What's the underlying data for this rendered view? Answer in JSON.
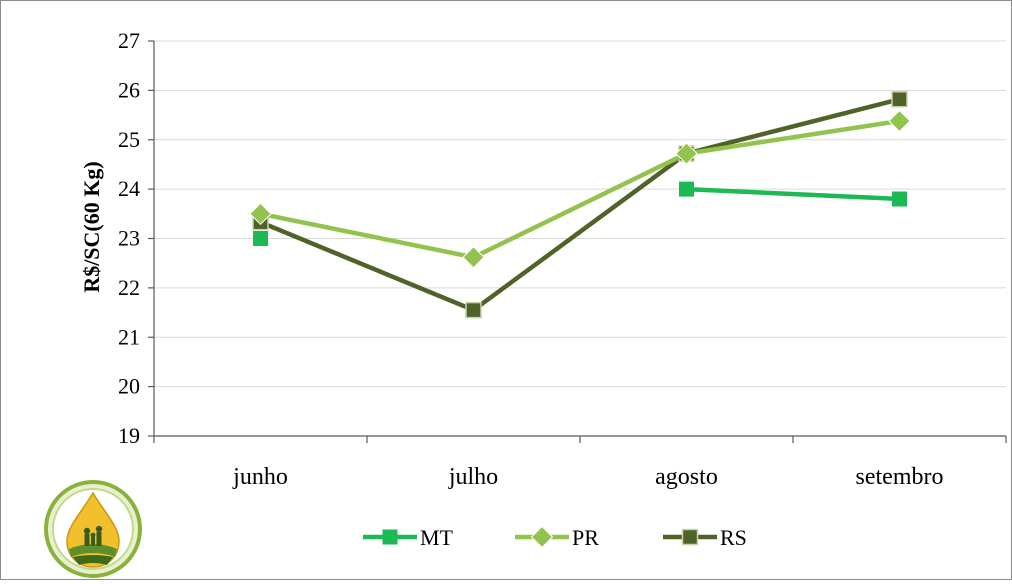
{
  "chart_data": {
    "type": "line",
    "title": "",
    "xlabel": "",
    "ylabel": "R$/SC(60 Kg)",
    "ylim": [
      19,
      27
    ],
    "yticks": [
      19,
      20,
      21,
      22,
      23,
      24,
      25,
      26,
      27
    ],
    "categories": [
      "junho",
      "julho",
      "agosto",
      "setembro"
    ],
    "grid": true,
    "legend_position": "bottom",
    "series": [
      {
        "name": "MT",
        "values": [
          23.0,
          null,
          24.0,
          23.8
        ],
        "color": "#1db954",
        "marker": "square"
      },
      {
        "name": "PR",
        "values": [
          23.5,
          22.62,
          24.72,
          25.38
        ],
        "color": "#92c34e",
        "marker": "diamond"
      },
      {
        "name": "RS",
        "values": [
          23.33,
          21.55,
          24.72,
          25.82
        ],
        "color": "#4f6228",
        "marker": "square"
      }
    ]
  },
  "logo": {
    "name": "droplet-logo"
  }
}
